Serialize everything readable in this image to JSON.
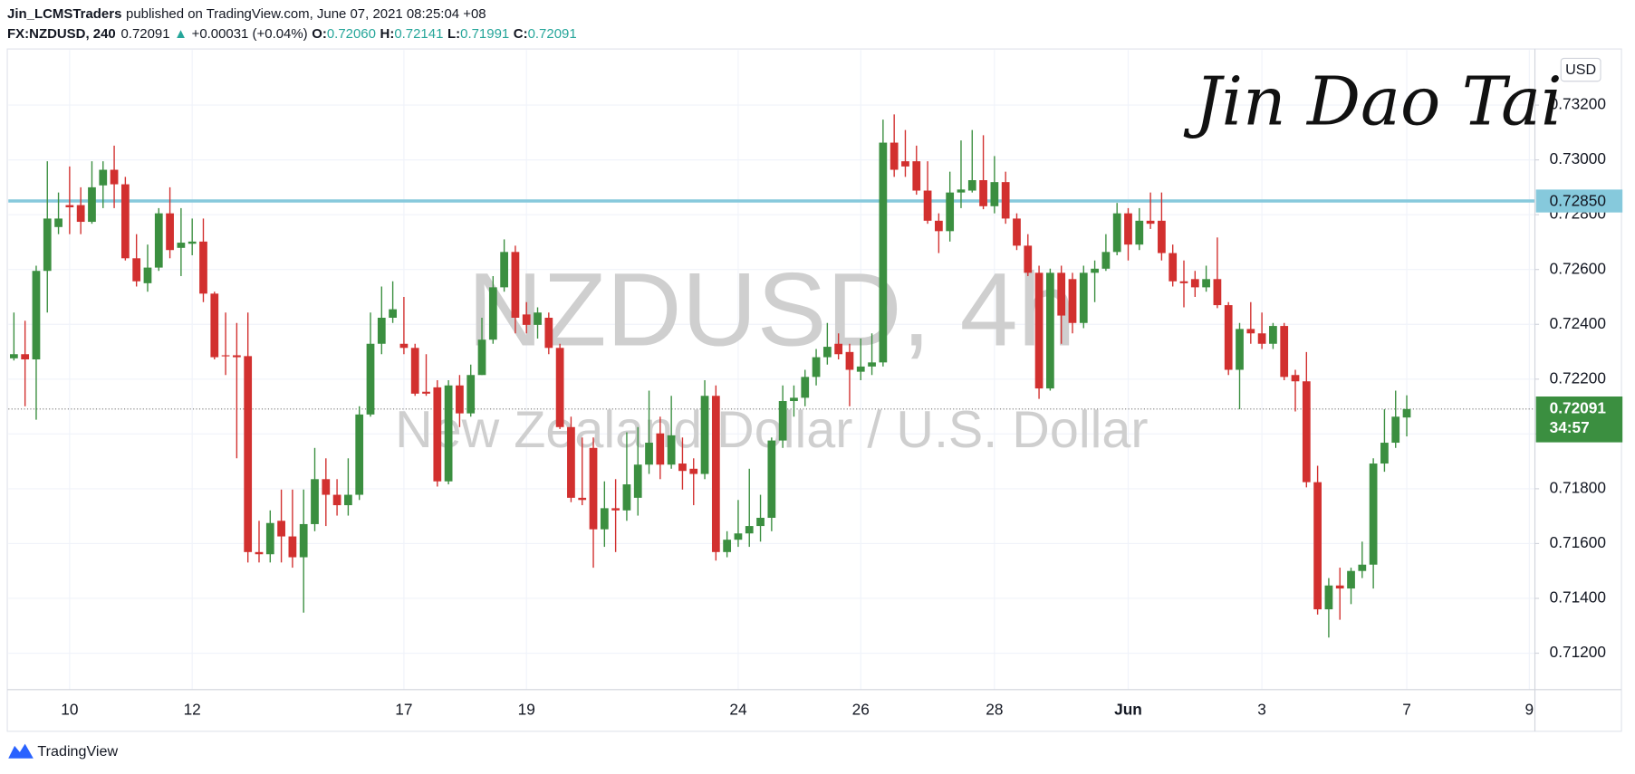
{
  "header": {
    "publisher": "Jin_LCMSTraders",
    "published": "published on TradingView.com, June 07, 2021 08:25:04 +08",
    "symbol": "FX:NZDUSD, 240",
    "last": "0.72091",
    "arrow": "▲",
    "change": "+0.00031 (+0.04%)",
    "open_label": "O:",
    "open": "0.72060",
    "high_label": "H:",
    "high": "0.72141",
    "low_label": "L:",
    "low": "0.71991",
    "close_label": "C:",
    "close": "0.72091"
  },
  "signature": "Jin Dao Tai",
  "brand": "TradingView",
  "chart_data": {
    "type": "candlestick",
    "watermark": "NZDUSD, 4h",
    "watermark_subtitle": "New Zealand Dollar / U.S. Dollar",
    "currency": "USD",
    "up_color": "#3b8f40",
    "down_color": "#d2302f",
    "grid": true,
    "ylim": [
      0.71067,
      0.73401
    ],
    "yticks": [
      {
        "value": 0.712,
        "label": "0.71200"
      },
      {
        "value": 0.714,
        "label": "0.71400"
      },
      {
        "value": 0.716,
        "label": "0.71600"
      },
      {
        "value": 0.718,
        "label": "0.71800"
      },
      {
        "value": 0.72,
        "label": "0.72000"
      },
      {
        "value": 0.722,
        "label": "0.72200"
      },
      {
        "value": 0.724,
        "label": "0.72400"
      },
      {
        "value": 0.726,
        "label": "0.72600"
      },
      {
        "value": 0.728,
        "label": "0.72800"
      },
      {
        "value": 0.73,
        "label": "0.73000"
      },
      {
        "value": 0.732,
        "label": "0.73200"
      }
    ],
    "hline": {
      "value": 0.7285,
      "label": "0.72850",
      "color": "#86c9dc"
    },
    "last_price_label": "0.72091",
    "countdown": "34:57",
    "categories": [
      null,
      null,
      null,
      null,
      null,
      "10",
      null,
      null,
      null,
      null,
      null,
      null,
      null,
      null,
      null,
      null,
      "12",
      null,
      null,
      null,
      null,
      null,
      null,
      null,
      null,
      null,
      null,
      null,
      null,
      null,
      null,
      null,
      null,
      null,
      null,
      "17",
      null,
      null,
      null,
      null,
      null,
      null,
      null,
      null,
      null,
      null,
      "19",
      null,
      null,
      null,
      null,
      null,
      null,
      null,
      null,
      null,
      null,
      null,
      null,
      null,
      null,
      null,
      null,
      null,
      null,
      "24",
      null,
      null,
      null,
      null,
      null,
      null,
      null,
      null,
      null,
      null,
      "26",
      null,
      null,
      null,
      null,
      null,
      null,
      null,
      null,
      null,
      null,
      null,
      "28",
      null,
      null,
      null,
      null,
      null,
      null,
      null,
      null,
      null,
      null,
      null,
      "Jun",
      null,
      null,
      null,
      null,
      null,
      null,
      null,
      null,
      null,
      null,
      null,
      "3",
      null,
      null,
      null,
      null,
      null,
      null,
      null,
      null,
      null,
      null,
      null,
      null,
      "7",
      null,
      null,
      null,
      null,
      null,
      null,
      null,
      null,
      null,
      null,
      "9"
    ],
    "open": [
      0.72276,
      0.72291,
      0.72272,
      0.72595,
      0.72755,
      0.72835,
      0.72835,
      0.72774,
      0.72907,
      0.72964,
      0.72911,
      0.72641,
      0.7255,
      0.72607,
      0.72805,
      0.72679,
      0.72694,
      0.72702,
      0.72512,
      0.72287,
      0.72287,
      0.72284,
      0.71569,
      0.71561,
      0.71683,
      0.71626,
      0.7155,
      0.71671,
      0.71835,
      0.71778,
      0.7174,
      0.71778,
      0.72071,
      0.72329,
      0.72424,
      0.72329,
      0.72314,
      0.72154,
      0.7217,
      0.71827,
      0.72177,
      0.72075,
      0.72215,
      0.72344,
      0.72535,
      0.72664,
      0.72436,
      0.72398,
      0.72424,
      0.72314,
      0.72025,
      0.71767,
      0.71949,
      0.71652,
      0.71729,
      0.71721,
      0.71767,
      0.71888,
      0.72002,
      0.71888,
      0.71892,
      0.71873,
      0.71854,
      0.72139,
      0.71569,
      0.71614,
      0.71637,
      0.71664,
      0.71694,
      0.71976,
      0.7212,
      0.72132,
      0.72208,
      0.7228,
      0.72329,
      0.72299,
      0.72227,
      0.72246,
      0.72261,
      0.73063,
      0.72995,
      0.72995,
      0.72888,
      0.72778,
      0.7274,
      0.72881,
      0.72888,
      0.72926,
      0.72831,
      0.72919,
      0.72786,
      0.72687,
      0.72588,
      0.72166,
      0.72588,
      0.72565,
      0.72405,
      0.72588,
      0.72603,
      0.72664,
      0.72805,
      0.72691,
      0.72778,
      0.72778,
      0.7266,
      0.72557,
      0.72565,
      0.72535,
      0.72565,
      0.7247,
      0.72234,
      0.72383,
      0.72367,
      0.72329,
      0.72394,
      0.72215,
      0.72192,
      0.71824,
      0.7136,
      0.71447,
      0.71436,
      0.715,
      0.71523,
      0.71892,
      0.71968,
      0.7206,
      null,
      null,
      null,
      null,
      null,
      null,
      null,
      null,
      null,
      null,
      null
    ],
    "high": [
      0.72443,
      0.72413,
      0.72614,
      0.72995,
      0.72881,
      0.72976,
      0.729,
      0.72995,
      0.72995,
      0.73052,
      0.72938,
      0.72729,
      0.72691,
      0.72824,
      0.729,
      0.72824,
      0.72786,
      0.72786,
      0.72519,
      0.72443,
      0.72405,
      0.72443,
      0.71683,
      0.71721,
      0.71797,
      0.71797,
      0.71797,
      0.71949,
      0.71911,
      0.71835,
      0.71911,
      0.72101,
      0.72443,
      0.72538,
      0.72557,
      0.725,
      0.72329,
      0.72291,
      0.72196,
      0.72196,
      0.72215,
      0.72253,
      0.72424,
      0.72576,
      0.7271,
      0.72687,
      0.72481,
      0.72462,
      0.72443,
      0.72329,
      0.72063,
      0.71987,
      0.71987,
      0.71827,
      0.71835,
      0.72006,
      0.72025,
      0.72158,
      0.72063,
      0.72139,
      0.71987,
      0.71911,
      0.72196,
      0.72177,
      0.71645,
      0.71759,
      0.71873,
      0.71778,
      0.71987,
      0.72177,
      0.72177,
      0.72234,
      0.7231,
      0.72405,
      0.72367,
      0.72329,
      0.72348,
      0.72367,
      0.73147,
      0.73166,
      0.73109,
      0.73052,
      0.72995,
      0.72805,
      0.72957,
      0.73071,
      0.73109,
      0.7309,
      0.73014,
      0.72957,
      0.72805,
      0.72729,
      0.72614,
      0.72603,
      0.72614,
      0.72588,
      0.72614,
      0.72633,
      0.72729,
      0.72843,
      0.72824,
      0.72824,
      0.72881,
      0.72881,
      0.72691,
      0.72633,
      0.72595,
      0.72614,
      0.72717,
      0.72481,
      0.72405,
      0.72481,
      0.72443,
      0.72405,
      0.72405,
      0.72234,
      0.72299,
      0.71884,
      0.71474,
      0.71512,
      0.71512,
      0.71607,
      0.71911,
      0.7209,
      0.72158,
      0.72141,
      null,
      null,
      null,
      null,
      null,
      null,
      null,
      null,
      null,
      null,
      null
    ],
    "low": [
      0.72268,
      0.72101,
      0.72052,
      0.72443,
      0.72729,
      0.72729,
      0.72729,
      0.72767,
      0.72824,
      0.72824,
      0.72633,
      0.72538,
      0.72519,
      0.72595,
      0.72641,
      0.72576,
      0.72652,
      0.72481,
      0.72272,
      0.72215,
      0.71911,
      0.71531,
      0.71531,
      0.71531,
      0.71531,
      0.71512,
      0.71348,
      0.71645,
      0.71664,
      0.71702,
      0.71702,
      0.71759,
      0.72063,
      0.72291,
      0.72405,
      0.72291,
      0.72139,
      0.72139,
      0.71808,
      0.71816,
      0.72025,
      0.72063,
      0.72215,
      0.72329,
      0.72519,
      0.72367,
      0.72367,
      0.72348,
      0.72291,
      0.72018,
      0.71751,
      0.7174,
      0.71512,
      0.71588,
      0.71569,
      0.71683,
      0.71702,
      0.71854,
      0.71835,
      0.71873,
      0.71797,
      0.7174,
      0.71835,
      0.71538,
      0.7155,
      0.71588,
      0.71588,
      0.71607,
      0.71645,
      0.71949,
      0.72063,
      0.72101,
      0.72177,
      0.72253,
      0.72272,
      0.72101,
      0.72196,
      0.72215,
      0.72246,
      0.72938,
      0.72938,
      0.72873,
      0.72767,
      0.7266,
      0.72702,
      0.72824,
      0.72881,
      0.7282,
      0.72805,
      0.72767,
      0.72671,
      0.72576,
      0.72128,
      0.72158,
      0.72329,
      0.72367,
      0.72386,
      0.72481,
      0.72595,
      0.72652,
      0.72633,
      0.72671,
      0.72748,
      0.72633,
      0.72538,
      0.72462,
      0.725,
      0.72519,
      0.72459,
      0.72215,
      0.7209,
      0.72329,
      0.7231,
      0.7231,
      0.72196,
      0.72082,
      0.71805,
      0.71341,
      0.71257,
      0.71322,
      0.71379,
      0.71474,
      0.71436,
      0.71862,
      0.71949,
      0.71991,
      null,
      null,
      null,
      null,
      null,
      null,
      null,
      null,
      null,
      null,
      null
    ],
    "close": [
      0.72291,
      0.72272,
      0.72595,
      0.72786,
      0.72786,
      0.72827,
      0.72774,
      0.729,
      0.72964,
      0.72911,
      0.72641,
      0.72557,
      0.72607,
      0.72805,
      0.72671,
      0.72698,
      0.72702,
      0.72512,
      0.7228,
      0.72284,
      0.7228,
      0.71569,
      0.71561,
      0.71675,
      0.71626,
      0.7155,
      0.71671,
      0.71835,
      0.71778,
      0.7174,
      0.71778,
      0.72071,
      0.72329,
      0.72424,
      0.72455,
      0.72314,
      0.72147,
      0.72147,
      0.71827,
      0.72177,
      0.72075,
      0.72215,
      0.72344,
      0.72535,
      0.72664,
      0.72424,
      0.72398,
      0.72443,
      0.72314,
      0.72025,
      0.71767,
      0.71759,
      0.71652,
      0.71729,
      0.71721,
      0.71816,
      0.71888,
      0.71968,
      0.71888,
      0.71995,
      0.71865,
      0.71854,
      0.72139,
      0.71569,
      0.71614,
      0.71637,
      0.71664,
      0.71694,
      0.71976,
      0.7212,
      0.72132,
      0.72208,
      0.7228,
      0.72318,
      0.72291,
      0.72234,
      0.72246,
      0.72261,
      0.73063,
      0.72964,
      0.72976,
      0.72888,
      0.72778,
      0.7274,
      0.72881,
      0.72892,
      0.72926,
      0.72831,
      0.72919,
      0.72786,
      0.72687,
      0.72588,
      0.72166,
      0.72588,
      0.72432,
      0.72405,
      0.72588,
      0.72603,
      0.72664,
      0.72805,
      0.72691,
      0.72778,
      0.72767,
      0.7266,
      0.72557,
      0.7255,
      0.72535,
      0.72565,
      0.7247,
      0.72234,
      0.72383,
      0.72367,
      0.72329,
      0.72394,
      0.72208,
      0.72192,
      0.71824,
      0.7136,
      0.71447,
      0.71436,
      0.715,
      0.71523,
      0.71892,
      0.71968,
      0.72063,
      0.72091,
      null,
      null,
      null,
      null,
      null,
      null,
      null,
      null,
      null,
      null,
      null
    ]
  }
}
